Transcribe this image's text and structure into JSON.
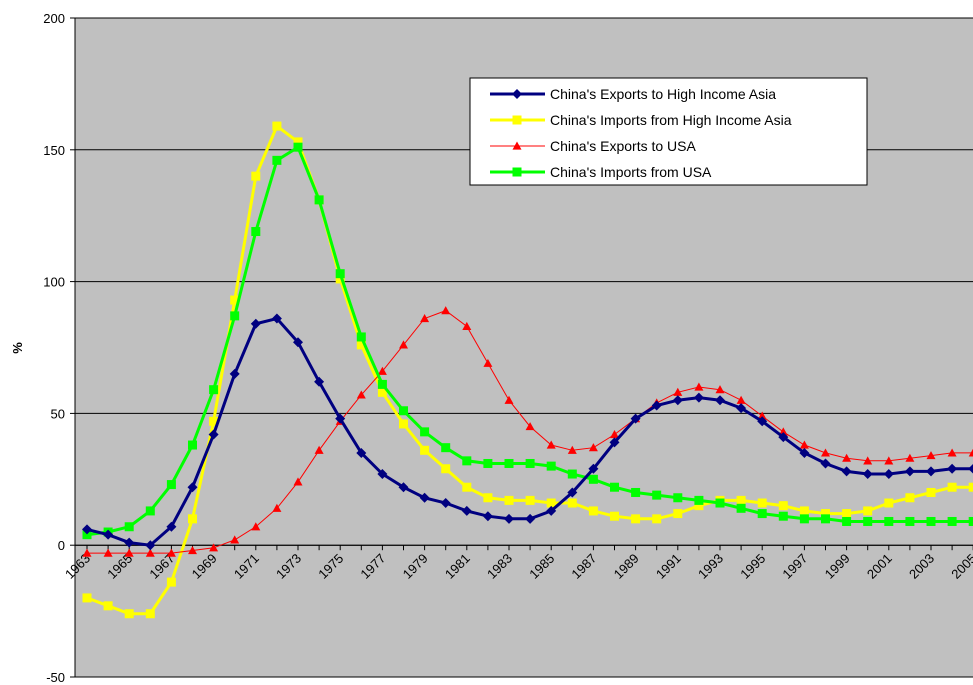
{
  "chart_data": {
    "type": "line",
    "title": "",
    "xlabel": "",
    "ylabel": "%",
    "ylim": [
      -50,
      200
    ],
    "xlim": [
      1963,
      2006
    ],
    "yticks": [
      -50,
      0,
      50,
      100,
      150,
      200
    ],
    "xticks": [
      1963,
      1965,
      1967,
      1969,
      1971,
      1973,
      1975,
      1977,
      1979,
      1981,
      1983,
      1985,
      1987,
      1989,
      1991,
      1993,
      1995,
      1997,
      1999,
      2001,
      2003,
      2005
    ],
    "grid": "horizontal",
    "legend_position": "top-right",
    "x": [
      1963,
      1964,
      1965,
      1966,
      1967,
      1968,
      1969,
      1970,
      1971,
      1972,
      1973,
      1974,
      1975,
      1976,
      1977,
      1978,
      1979,
      1980,
      1981,
      1982,
      1983,
      1984,
      1985,
      1986,
      1987,
      1988,
      1989,
      1990,
      1991,
      1992,
      1993,
      1994,
      1995,
      1996,
      1997,
      1998,
      1999,
      2000,
      2001,
      2002,
      2003,
      2004,
      2005,
      2006
    ],
    "series": [
      {
        "name": "China's Exports to High Income Asia",
        "color": "#000080",
        "marker": "diamond",
        "values": [
          6,
          4,
          1,
          0,
          7,
          22,
          42,
          65,
          84,
          86,
          77,
          62,
          48,
          35,
          27,
          22,
          18,
          16,
          13,
          11,
          10,
          10,
          13,
          20,
          29,
          39,
          48,
          53,
          55,
          56,
          55,
          52,
          47,
          41,
          35,
          31,
          28,
          27,
          27,
          28,
          28,
          29,
          29,
          29
        ]
      },
      {
        "name": "China's Imports from High Income Asia",
        "color": "#FFFF00",
        "marker": "square",
        "values": [
          -20,
          -23,
          -26,
          -26,
          -14,
          10,
          47,
          93,
          140,
          159,
          153,
          131,
          101,
          76,
          58,
          46,
          36,
          29,
          22,
          18,
          17,
          17,
          16,
          16,
          13,
          11,
          10,
          10,
          12,
          15,
          17,
          17,
          16,
          15,
          13,
          12,
          12,
          13,
          16,
          18,
          20,
          22,
          22,
          22
        ]
      },
      {
        "name": "China's Exports to USA",
        "color": "#FF0000",
        "marker": "triangle",
        "values": [
          -3,
          -3,
          -3,
          -3,
          -3,
          -2,
          -1,
          2,
          7,
          14,
          24,
          36,
          47,
          57,
          66,
          76,
          86,
          89,
          83,
          69,
          55,
          45,
          38,
          36,
          37,
          42,
          48,
          54,
          58,
          60,
          59,
          55,
          49,
          43,
          38,
          35,
          33,
          32,
          32,
          33,
          34,
          35,
          35,
          35
        ]
      },
      {
        "name": "China's Imports from USA",
        "color": "#00FF00",
        "marker": "square",
        "values": [
          4,
          5,
          7,
          13,
          23,
          38,
          59,
          87,
          119,
          146,
          151,
          131,
          103,
          79,
          61,
          51,
          43,
          37,
          32,
          31,
          31,
          31,
          30,
          27,
          25,
          22,
          20,
          19,
          18,
          17,
          16,
          14,
          12,
          11,
          10,
          10,
          9,
          9,
          9,
          9,
          9,
          9,
          9,
          9
        ]
      }
    ]
  }
}
